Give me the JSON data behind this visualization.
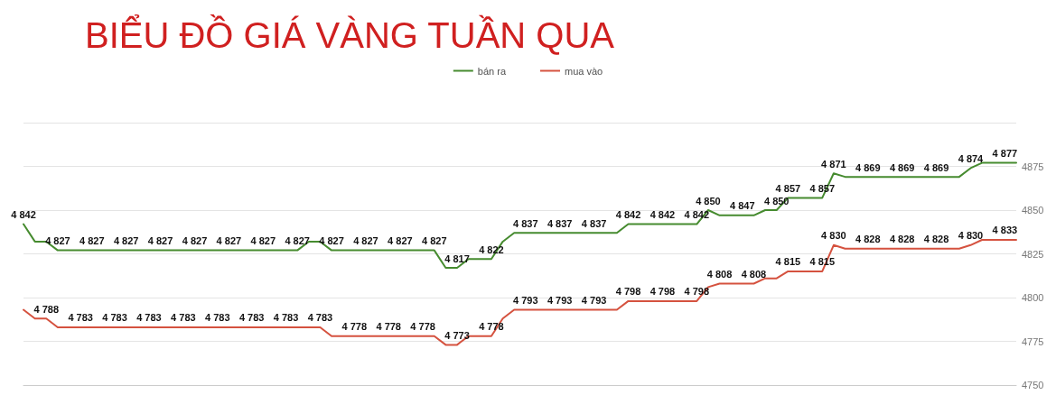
{
  "chart_data": {
    "type": "line",
    "title": "BIỂU ĐỒ GIÁ VÀNG TUẦN QUA",
    "categories": [
      null,
      null,
      null,
      null,
      null,
      null,
      null,
      null,
      null,
      null,
      null,
      null,
      null,
      null,
      null,
      null,
      null,
      null,
      null,
      null,
      null,
      null,
      null,
      null,
      null,
      null,
      null,
      null,
      null,
      null,
      null,
      null,
      null,
      null,
      null,
      null,
      null,
      null,
      null,
      null,
      null,
      null,
      null,
      null,
      null,
      null,
      null,
      null,
      null,
      null,
      null,
      null,
      null,
      null,
      null,
      null,
      null,
      null,
      null,
      null,
      null,
      null,
      null,
      null,
      null,
      null,
      null,
      null,
      null,
      null,
      null,
      null,
      null,
      null,
      null,
      null,
      null,
      null,
      null,
      null,
      null,
      null,
      null,
      null,
      null,
      null,
      null,
      null
    ],
    "series": [
      {
        "name": "bán ra",
        "color": "#468b2f",
        "values": [
          4842,
          4832,
          4832,
          4827,
          4827,
          4827,
          4827,
          4827,
          4827,
          4827,
          4827,
          4827,
          4827,
          4827,
          4827,
          4827,
          4827,
          4827,
          4827,
          4827,
          4827,
          4827,
          4827,
          4827,
          4827,
          4832,
          4832,
          4827,
          4827,
          4827,
          4827,
          4827,
          4827,
          4827,
          4827,
          4827,
          4827,
          4817,
          4817,
          4822,
          4822,
          4822,
          4832,
          4837,
          4837,
          4837,
          4837,
          4837,
          4837,
          4837,
          4837,
          4837,
          4837,
          4842,
          4842,
          4842,
          4842,
          4842,
          4842,
          4842,
          4850,
          4847,
          4847,
          4847,
          4847,
          4850,
          4850,
          4857,
          4857,
          4857,
          4857,
          4871,
          4869,
          4869,
          4869,
          4869,
          4869,
          4869,
          4869,
          4869,
          4869,
          4869,
          4869,
          4874,
          4877,
          4877,
          4877,
          4877
        ],
        "value_labels": [
          "4 842",
          null,
          null,
          "4 827",
          null,
          null,
          "4 827",
          null,
          null,
          "4 827",
          null,
          null,
          "4 827",
          null,
          null,
          "4 827",
          null,
          null,
          "4 827",
          null,
          null,
          "4 827",
          null,
          null,
          "4 827",
          null,
          null,
          "4 827",
          null,
          null,
          "4 827",
          null,
          null,
          "4 827",
          null,
          null,
          "4 827",
          null,
          "4 817",
          null,
          null,
          "4 822",
          null,
          null,
          "4 837",
          null,
          null,
          "4 837",
          null,
          null,
          "4 837",
          null,
          null,
          "4 842",
          null,
          null,
          "4 842",
          null,
          null,
          "4 842",
          "4 850",
          null,
          null,
          "4 847",
          null,
          null,
          "4 850",
          "4 857",
          null,
          null,
          "4 857",
          "4 871",
          null,
          null,
          "4 869",
          null,
          null,
          "4 869",
          null,
          null,
          "4 869",
          null,
          null,
          "4 874",
          null,
          null,
          "4 877",
          null
        ]
      },
      {
        "name": "mua vào",
        "color": "#d5523f",
        "values": [
          4793,
          4788,
          4788,
          4783,
          4783,
          4783,
          4783,
          4783,
          4783,
          4783,
          4783,
          4783,
          4783,
          4783,
          4783,
          4783,
          4783,
          4783,
          4783,
          4783,
          4783,
          4783,
          4783,
          4783,
          4783,
          4783,
          4783,
          4778,
          4778,
          4778,
          4778,
          4778,
          4778,
          4778,
          4778,
          4778,
          4778,
          4773,
          4773,
          4778,
          4778,
          4778,
          4788,
          4793,
          4793,
          4793,
          4793,
          4793,
          4793,
          4793,
          4793,
          4793,
          4793,
          4798,
          4798,
          4798,
          4798,
          4798,
          4798,
          4798,
          4806,
          4808,
          4808,
          4808,
          4808,
          4811,
          4811,
          4815,
          4815,
          4815,
          4815,
          4830,
          4828,
          4828,
          4828,
          4828,
          4828,
          4828,
          4828,
          4828,
          4828,
          4828,
          4828,
          4830,
          4833,
          4833,
          4833,
          4833
        ],
        "value_labels": [
          null,
          null,
          "4 788",
          null,
          null,
          "4 783",
          null,
          null,
          "4 783",
          null,
          null,
          "4 783",
          null,
          null,
          "4 783",
          null,
          null,
          "4 783",
          null,
          null,
          "4 783",
          null,
          null,
          "4 783",
          null,
          null,
          "4 783",
          null,
          null,
          "4 778",
          null,
          null,
          "4 778",
          null,
          null,
          "4 778",
          null,
          null,
          "4 773",
          null,
          null,
          "4 778",
          null,
          null,
          "4 793",
          null,
          null,
          "4 793",
          null,
          null,
          "4 793",
          null,
          null,
          "4 798",
          null,
          null,
          "4 798",
          null,
          null,
          "4 798",
          null,
          "4 808",
          null,
          null,
          "4 808",
          null,
          null,
          "4 815",
          null,
          null,
          "4 815",
          "4 830",
          null,
          null,
          "4 828",
          null,
          null,
          "4 828",
          null,
          null,
          "4 828",
          null,
          null,
          "4 830",
          null,
          null,
          "4 833",
          null
        ]
      }
    ],
    "ylim": [
      4750,
      4900
    ],
    "yticks": [
      4750,
      4775,
      4800,
      4825,
      4850,
      4875,
      {
        "value": 4900,
        "label": null
      }
    ],
    "grid": "y",
    "legend": "top",
    "marker": "none",
    "tick_labels": "y"
  }
}
